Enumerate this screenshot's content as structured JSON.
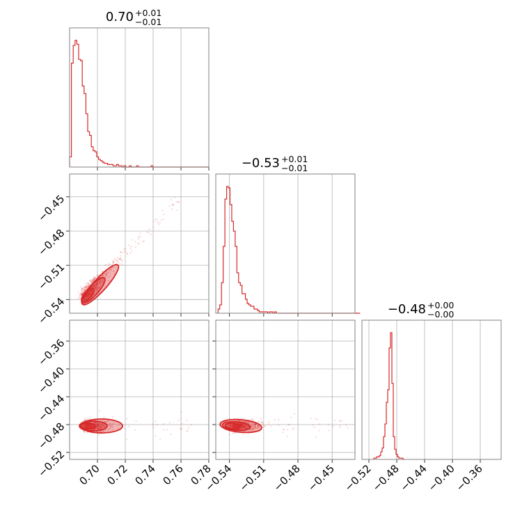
{
  "colors": {
    "accent": "#d62728",
    "grid": "#b0b0b0",
    "frame": "#808080"
  },
  "chart_data": {
    "type": "corner",
    "parameters": [
      {
        "id": "p0",
        "title_value": "0.70",
        "err_plus": "+0.01",
        "err_minus": "−0.01",
        "range": [
          0.68,
          0.78
        ],
        "ticks": [
          0.7,
          0.72,
          0.74,
          0.76,
          0.78
        ],
        "tick_labels": [
          "0.70",
          "0.72",
          "0.74",
          "0.76",
          "0.78"
        ]
      },
      {
        "id": "p1",
        "title_value": "−0.53",
        "err_plus": "+0.01",
        "err_minus": "−0.01",
        "range": [
          -0.552,
          -0.43
        ],
        "ticks": [
          -0.54,
          -0.51,
          -0.48,
          -0.45
        ],
        "tick_labels": [
          "−0.54",
          "−0.51",
          "−0.48",
          "−0.45"
        ]
      },
      {
        "id": "p2",
        "title_value": "−0.48",
        "err_plus": "+0.00",
        "err_minus": "−0.00",
        "range": [
          -0.53,
          -0.33
        ],
        "ticks": [
          -0.52,
          -0.48,
          -0.44,
          -0.4,
          -0.36
        ],
        "tick_labels": [
          "−0.52",
          "−0.48",
          "−0.44",
          "−0.40",
          "−0.36"
        ]
      }
    ],
    "histograms": [
      {
        "param": "p0",
        "bin_start": 0.68,
        "bin_width": 0.0013,
        "counts": [
          8,
          82,
          96,
          100,
          97,
          85,
          84,
          64,
          58,
          42,
          28,
          25,
          16,
          13,
          12,
          8,
          6,
          5,
          4,
          3,
          3,
          2,
          2,
          2,
          1,
          1,
          2,
          1,
          1,
          0,
          1,
          0,
          0,
          1,
          0,
          0,
          0,
          1,
          0,
          0,
          0,
          0,
          0,
          0,
          0,
          1,
          0,
          0,
          0,
          0,
          0,
          0,
          0,
          0,
          0,
          0,
          0,
          0,
          0,
          0,
          0,
          0,
          0,
          0,
          0,
          0,
          0,
          0,
          0,
          0,
          0,
          0,
          0,
          0,
          0,
          0,
          0
        ]
      },
      {
        "param": "p1",
        "bin_start": -0.55,
        "bin_width": 0.0015,
        "counts": [
          3,
          6,
          22,
          48,
          82,
          91,
          90,
          78,
          66,
          59,
          48,
          29,
          22,
          20,
          14,
          14,
          10,
          7,
          6,
          5,
          5,
          3,
          3,
          2,
          1,
          1,
          1,
          1,
          1,
          0,
          1,
          1,
          0,
          1,
          0,
          0,
          0,
          0,
          0,
          0,
          0,
          0,
          0,
          0,
          0,
          0,
          0,
          0,
          0,
          0,
          0,
          0,
          0,
          0,
          0,
          0,
          0,
          0,
          0,
          0,
          0,
          0,
          0,
          0,
          0,
          0,
          0,
          0,
          0,
          0,
          0,
          0,
          0,
          0,
          0,
          0,
          0,
          0,
          0,
          0,
          0,
          0,
          0
        ]
      },
      {
        "param": "p2",
        "bin_start": -0.513,
        "bin_width": 0.002,
        "counts": [
          1,
          1,
          2,
          2,
          3,
          6,
          9,
          18,
          28,
          45,
          55,
          88,
          100,
          60,
          18,
          8,
          4,
          2,
          1,
          1,
          1,
          0
        ]
      }
    ]
  }
}
